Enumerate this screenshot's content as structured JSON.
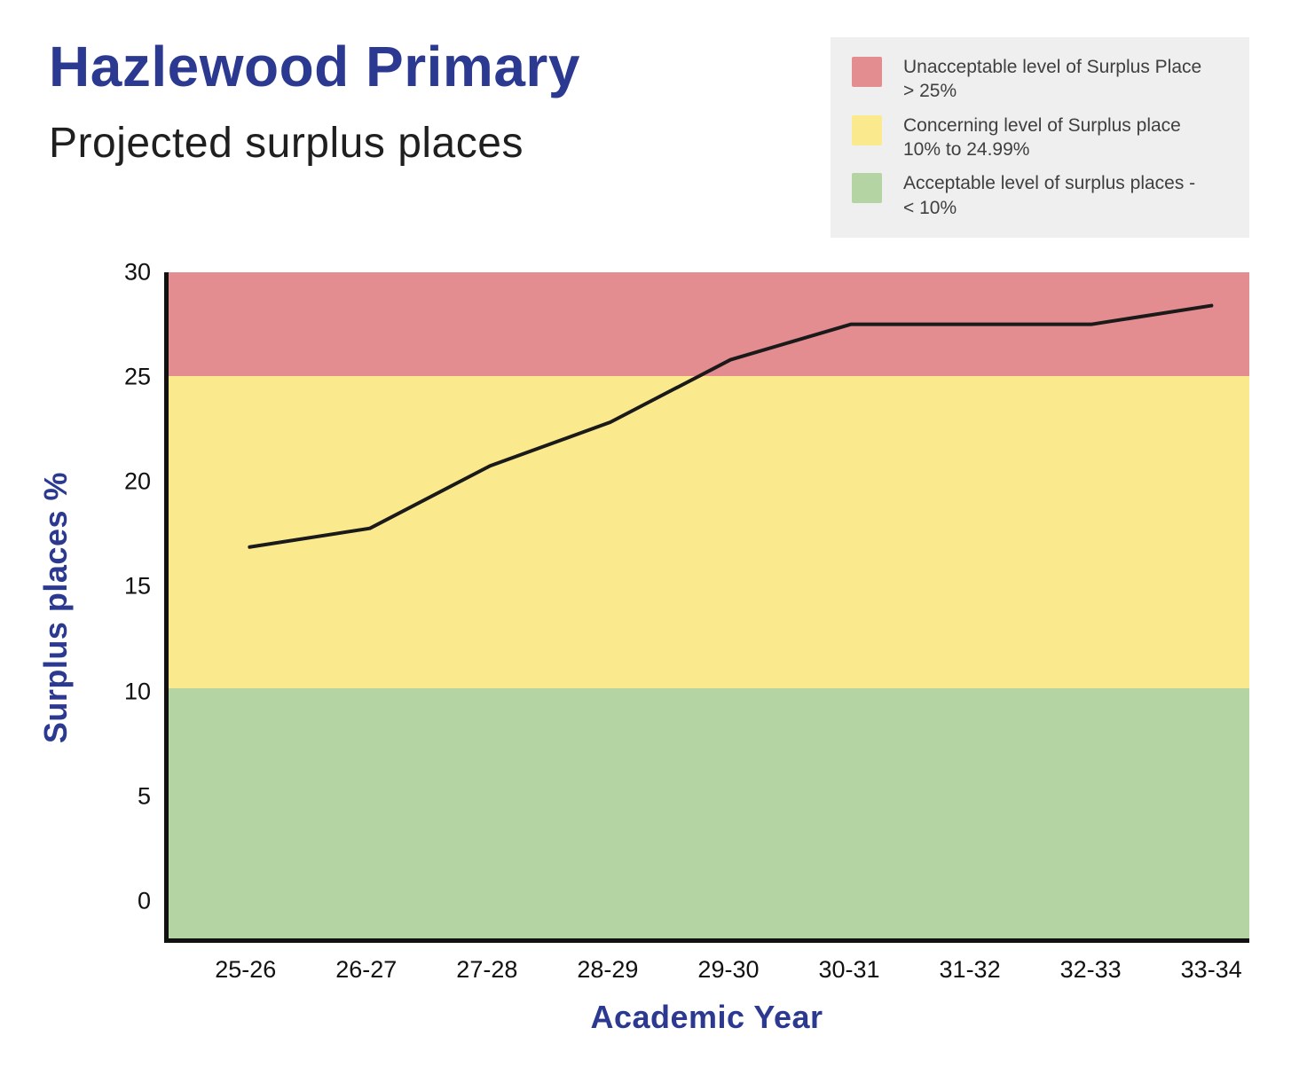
{
  "page": {
    "title": "Hazlewood Primary",
    "subtitle": "Projected surplus places"
  },
  "legend": {
    "items": [
      {
        "key": "unacceptable",
        "label": "Unacceptable level of Surplus Place > 25%",
        "color": "#e48d90"
      },
      {
        "key": "concerning",
        "label": "Concerning level of Surplus place 10% to 24.99%",
        "color": "#fbe98d"
      },
      {
        "key": "acceptable",
        "label": "Acceptable level of surplus places - < 10%",
        "color": "#b4d5a3"
      }
    ]
  },
  "chart_data": {
    "type": "line",
    "title": "Hazlewood Primary — Projected surplus places",
    "categories": [
      "25-26",
      "26-27",
      "27-28",
      "28-29",
      "29-30",
      "30-31",
      "31-32",
      "32-33",
      "33-34"
    ],
    "series": [
      {
        "name": "Projected surplus places",
        "values": [
          16.8,
          17.7,
          20.7,
          22.8,
          25.8,
          27.5,
          27.5,
          27.5,
          28.4
        ],
        "color": "#1a1a1a"
      }
    ],
    "xlabel": "Academic Year",
    "ylabel": "Surplus places %",
    "yticks": [
      30,
      25,
      20,
      15,
      10,
      5,
      0
    ],
    "ylim": [
      -2,
      30
    ],
    "grid": false,
    "legend_position": "top-right",
    "bands": [
      {
        "key": "unacceptable",
        "from": 25,
        "to": 30,
        "color": "#e48d90",
        "label": "Unacceptable level of Surplus Place > 25%"
      },
      {
        "key": "concerning",
        "from": 10,
        "to": 25,
        "color": "#fbe98d",
        "label": "Concerning level of Surplus place 10% to 24.99%"
      },
      {
        "key": "acceptable",
        "from": -2,
        "to": 10,
        "color": "#b4d5a3",
        "label": "Acceptable level of surplus places - < 10%"
      }
    ]
  }
}
